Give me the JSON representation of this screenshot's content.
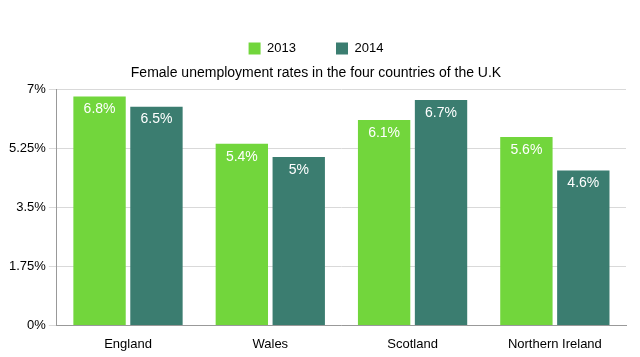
{
  "chart_data": {
    "type": "bar",
    "title": "Female unemployment rates in the four countries of the U.K",
    "categories": [
      "England",
      "Wales",
      "Scotland",
      "Northern Ireland"
    ],
    "series": [
      {
        "name": "2013",
        "color": "#72d63c",
        "values": [
          6.8,
          5.4,
          6.1,
          5.6
        ],
        "value_labels": [
          "6.8%",
          "5.4%",
          "6.1%",
          "5.6%"
        ]
      },
      {
        "name": "2014",
        "color": "#3b7d70",
        "values": [
          6.5,
          5,
          6.7,
          4.6
        ],
        "value_labels": [
          "6.5%",
          "5%",
          "6.7%",
          "4.6%"
        ]
      }
    ],
    "ylim": [
      0,
      7
    ],
    "yticks": [
      {
        "value": 0,
        "label": "0%"
      },
      {
        "value": 1.75,
        "label": "1.75%"
      },
      {
        "value": 3.5,
        "label": "3.5%"
      },
      {
        "value": 5.25,
        "label": "5.25%"
      },
      {
        "value": 7,
        "label": "7%"
      }
    ],
    "grid": true,
    "legend": "top",
    "data_labels": true
  }
}
